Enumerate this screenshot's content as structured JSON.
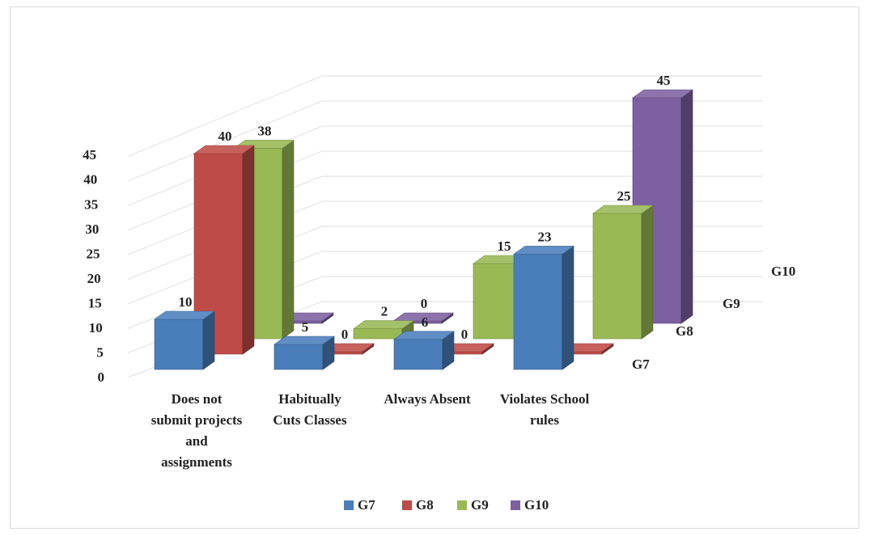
{
  "chart_data": {
    "type": "bar",
    "subtype": "3d-clustered-column",
    "title": "",
    "xlabel": "",
    "ylabel": "",
    "categories": [
      "Does not submit projects and assignments",
      "Habitually Cuts Classes",
      "Always Absent",
      "Violates School rules"
    ],
    "category_lines": [
      [
        "Does not",
        "submit projects",
        "and",
        "assignments"
      ],
      [
        "Habitually",
        "Cuts Classes"
      ],
      [
        "Always Absent"
      ],
      [
        "Violates School",
        "rules"
      ]
    ],
    "series": [
      {
        "name": "G7",
        "values": [
          10,
          5,
          6,
          23
        ],
        "color": "#4a7ebb"
      },
      {
        "name": "G8",
        "values": [
          40,
          0,
          0,
          0
        ],
        "color": "#be4b48"
      },
      {
        "name": "G9",
        "values": [
          38,
          2,
          15,
          25
        ],
        "color": "#98b954"
      },
      {
        "name": "G10",
        "values": [
          0,
          0,
          0,
          45
        ],
        "color": "#7d60a0"
      }
    ],
    "data_labels": [
      [
        "10",
        "5",
        "6",
        "23"
      ],
      [
        "40",
        "0",
        "0",
        ""
      ],
      [
        "38",
        "2",
        "15",
        "25"
      ],
      [
        "",
        "0",
        "0",
        "45"
      ]
    ],
    "ylim": [
      0,
      45
    ],
    "yticks": [
      0,
      5,
      10,
      15,
      20,
      25,
      30,
      35,
      40,
      45
    ],
    "grid": true,
    "legend_position": "bottom"
  }
}
